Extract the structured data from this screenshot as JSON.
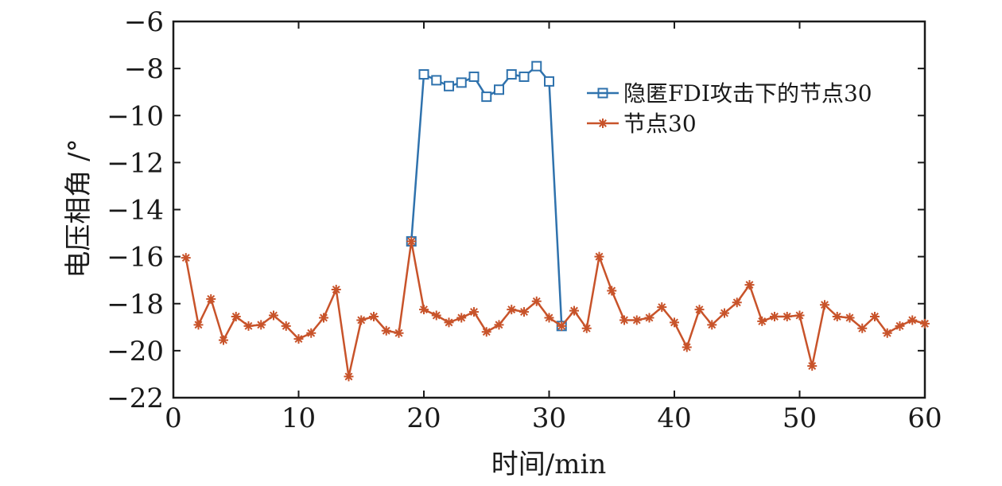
{
  "chart_data": {
    "type": "line",
    "xlabel": "时间/min",
    "ylabel": "电压相角 /°",
    "xlim": [
      0,
      60
    ],
    "ylim": [
      -22,
      -6
    ],
    "x_ticks": [
      0,
      10,
      20,
      30,
      40,
      50,
      60
    ],
    "y_ticks": [
      -22,
      -20,
      -18,
      -16,
      -14,
      -12,
      -10,
      -8,
      -6
    ],
    "y_tick_labels": [
      "−22",
      "−20",
      "−18",
      "−16",
      "−14",
      "−12",
      "−10",
      "−8",
      "−6"
    ],
    "grid": false,
    "legend_position": "top-right",
    "series": [
      {
        "name": "隐匿FDI攻击下的节点30",
        "color": "#2f72ad",
        "marker": "square",
        "x": [
          19,
          20,
          21,
          22,
          23,
          24,
          25,
          26,
          27,
          28,
          29,
          30,
          31
        ],
        "values": [
          -15.35,
          -8.25,
          -8.5,
          -8.75,
          -8.6,
          -8.35,
          -9.2,
          -8.9,
          -8.25,
          -8.35,
          -7.9,
          -8.55,
          -18.95
        ]
      },
      {
        "name": "节点30",
        "color": "#c8532a",
        "marker": "star",
        "x": [
          1,
          2,
          3,
          4,
          5,
          6,
          7,
          8,
          9,
          10,
          11,
          12,
          13,
          14,
          15,
          16,
          17,
          18,
          19,
          20,
          21,
          22,
          23,
          24,
          25,
          26,
          27,
          28,
          29,
          30,
          31,
          32,
          33,
          34,
          35,
          36,
          37,
          38,
          39,
          40,
          41,
          42,
          43,
          44,
          45,
          46,
          47,
          48,
          49,
          50,
          51,
          52,
          53,
          54,
          55,
          56,
          57,
          58,
          59,
          60
        ],
        "values": [
          -16.05,
          -18.9,
          -17.8,
          -19.55,
          -18.55,
          -18.95,
          -18.9,
          -18.5,
          -18.95,
          -19.5,
          -19.25,
          -18.6,
          -17.4,
          -21.1,
          -18.7,
          -18.55,
          -19.15,
          -19.25,
          -15.35,
          -18.25,
          -18.5,
          -18.8,
          -18.6,
          -18.35,
          -19.2,
          -18.9,
          -18.25,
          -18.35,
          -17.9,
          -18.6,
          -18.95,
          -18.3,
          -19.05,
          -16.0,
          -17.45,
          -18.7,
          -18.7,
          -18.6,
          -18.15,
          -18.8,
          -19.85,
          -18.25,
          -18.9,
          -18.4,
          -17.95,
          -17.2,
          -18.75,
          -18.55,
          -18.55,
          -18.5,
          -20.65,
          -18.05,
          -18.55,
          -18.6,
          -19.05,
          -18.55,
          -19.25,
          -18.95,
          -18.7,
          -18.85
        ]
      }
    ]
  }
}
